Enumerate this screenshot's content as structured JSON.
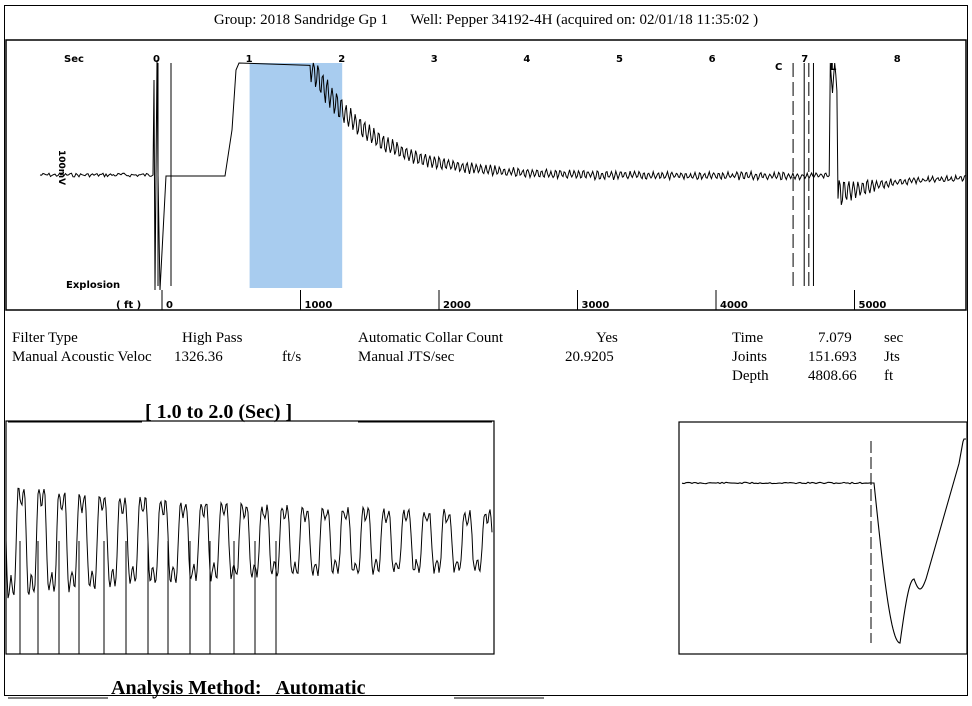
{
  "header": {
    "group_label": "Group:",
    "group_value": "2018 Sandridge Gp 1",
    "well_label": "Well:",
    "well_value": "Pepper 34192-4H",
    "acquired_label": "(acquired on:",
    "acquired_value": "02/01/18 11:35:02 )"
  },
  "main_chart": {
    "sec_label": "Sec",
    "ft_label": "( ft )",
    "y_label": "100mV",
    "explosion_label": "Explosion",
    "collar_marker_label": "C",
    "liquid_marker_label": "L",
    "highlight_range_sec": [
      1.0,
      2.0
    ]
  },
  "info": {
    "filter_type_label": "Filter Type",
    "filter_type_value": "High Pass",
    "manual_velocity_label": "Manual Acoustic Veloc",
    "manual_velocity_value": "1326.36",
    "manual_velocity_unit": "ft/s",
    "auto_collar_label": "Automatic Collar Count",
    "auto_collar_value": "Yes",
    "manual_jts_label": "Manual JTS/sec",
    "manual_jts_value": "20.9205",
    "time_label": "Time",
    "time_value": "7.079",
    "time_unit": "sec",
    "joints_label": "Joints",
    "joints_value": "151.693",
    "joints_unit": "Jts",
    "depth_label": "Depth",
    "depth_value": "4808.66",
    "depth_unit": "ft"
  },
  "zoom_title": "[ 1.0  to  2.0 (Sec) ]",
  "footer": {
    "analysis_label": "Analysis Method:",
    "analysis_value": "Automatic"
  },
  "chart_data": [
    {
      "type": "line",
      "x_unit": "sec",
      "x_ticks": [
        0,
        1,
        2,
        3,
        4,
        5,
        6,
        7,
        8
      ],
      "x_secondary_unit": "ft",
      "x_secondary_ticks": [
        0,
        1000,
        2000,
        3000,
        4000,
        5000
      ],
      "xlim": [
        -0.7,
        8.7
      ],
      "annotations": {
        "explosion_sec": 0.0,
        "highlight_sec": [
          1.0,
          2.0
        ],
        "liquid_level_sec": 7.079,
        "dashed_markers_sec": [
          6.88,
          7.05
        ],
        "solid_markers_sec": [
          7.0,
          7.1
        ]
      },
      "grid": false,
      "legend": "none"
    },
    {
      "type": "line",
      "title": "[ 1.0  to  2.0 (Sec) ]",
      "xlim": [
        1.0,
        2.0
      ],
      "grid": false
    },
    {
      "type": "line",
      "grid": false
    }
  ]
}
